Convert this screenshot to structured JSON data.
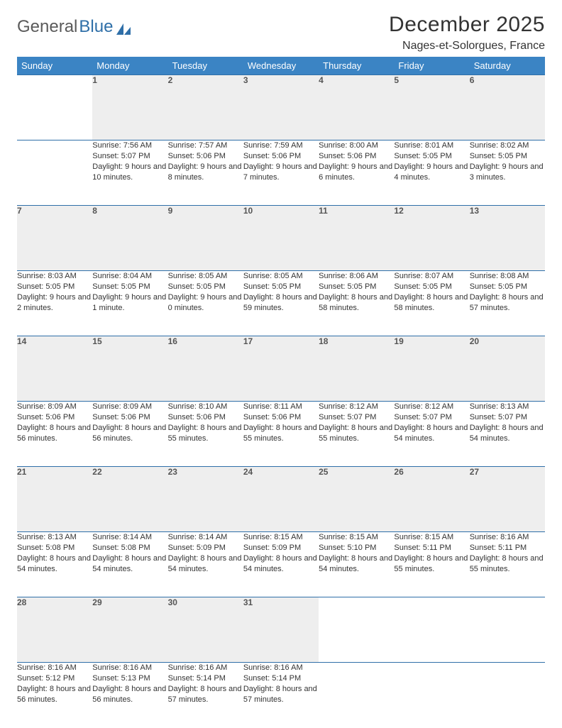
{
  "logo": {
    "part1": "General",
    "part2": "Blue"
  },
  "title": "December 2025",
  "location": "Nages-et-Solorgues, France",
  "colors": {
    "header_bg": "#3b84c4",
    "header_text": "#ffffff",
    "border": "#2f6fa8",
    "daynum_bg": "#eeeeee",
    "daynum_text": "#555555",
    "body_text": "#333333",
    "logo_gray": "#5a5a5a",
    "logo_blue": "#2f6fa8",
    "page_bg": "#ffffff"
  },
  "weekdays": [
    "Sunday",
    "Monday",
    "Tuesday",
    "Wednesday",
    "Thursday",
    "Friday",
    "Saturday"
  ],
  "weeks": [
    [
      null,
      {
        "n": "1",
        "sr": "7:56 AM",
        "ss": "5:07 PM",
        "dl": "9 hours and 10 minutes."
      },
      {
        "n": "2",
        "sr": "7:57 AM",
        "ss": "5:06 PM",
        "dl": "9 hours and 8 minutes."
      },
      {
        "n": "3",
        "sr": "7:59 AM",
        "ss": "5:06 PM",
        "dl": "9 hours and 7 minutes."
      },
      {
        "n": "4",
        "sr": "8:00 AM",
        "ss": "5:06 PM",
        "dl": "9 hours and 6 minutes."
      },
      {
        "n": "5",
        "sr": "8:01 AM",
        "ss": "5:05 PM",
        "dl": "9 hours and 4 minutes."
      },
      {
        "n": "6",
        "sr": "8:02 AM",
        "ss": "5:05 PM",
        "dl": "9 hours and 3 minutes."
      }
    ],
    [
      {
        "n": "7",
        "sr": "8:03 AM",
        "ss": "5:05 PM",
        "dl": "9 hours and 2 minutes."
      },
      {
        "n": "8",
        "sr": "8:04 AM",
        "ss": "5:05 PM",
        "dl": "9 hours and 1 minute."
      },
      {
        "n": "9",
        "sr": "8:05 AM",
        "ss": "5:05 PM",
        "dl": "9 hours and 0 minutes."
      },
      {
        "n": "10",
        "sr": "8:05 AM",
        "ss": "5:05 PM",
        "dl": "8 hours and 59 minutes."
      },
      {
        "n": "11",
        "sr": "8:06 AM",
        "ss": "5:05 PM",
        "dl": "8 hours and 58 minutes."
      },
      {
        "n": "12",
        "sr": "8:07 AM",
        "ss": "5:05 PM",
        "dl": "8 hours and 58 minutes."
      },
      {
        "n": "13",
        "sr": "8:08 AM",
        "ss": "5:05 PM",
        "dl": "8 hours and 57 minutes."
      }
    ],
    [
      {
        "n": "14",
        "sr": "8:09 AM",
        "ss": "5:06 PM",
        "dl": "8 hours and 56 minutes."
      },
      {
        "n": "15",
        "sr": "8:09 AM",
        "ss": "5:06 PM",
        "dl": "8 hours and 56 minutes."
      },
      {
        "n": "16",
        "sr": "8:10 AM",
        "ss": "5:06 PM",
        "dl": "8 hours and 55 minutes."
      },
      {
        "n": "17",
        "sr": "8:11 AM",
        "ss": "5:06 PM",
        "dl": "8 hours and 55 minutes."
      },
      {
        "n": "18",
        "sr": "8:12 AM",
        "ss": "5:07 PM",
        "dl": "8 hours and 55 minutes."
      },
      {
        "n": "19",
        "sr": "8:12 AM",
        "ss": "5:07 PM",
        "dl": "8 hours and 54 minutes."
      },
      {
        "n": "20",
        "sr": "8:13 AM",
        "ss": "5:07 PM",
        "dl": "8 hours and 54 minutes."
      }
    ],
    [
      {
        "n": "21",
        "sr": "8:13 AM",
        "ss": "5:08 PM",
        "dl": "8 hours and 54 minutes."
      },
      {
        "n": "22",
        "sr": "8:14 AM",
        "ss": "5:08 PM",
        "dl": "8 hours and 54 minutes."
      },
      {
        "n": "23",
        "sr": "8:14 AM",
        "ss": "5:09 PM",
        "dl": "8 hours and 54 minutes."
      },
      {
        "n": "24",
        "sr": "8:15 AM",
        "ss": "5:09 PM",
        "dl": "8 hours and 54 minutes."
      },
      {
        "n": "25",
        "sr": "8:15 AM",
        "ss": "5:10 PM",
        "dl": "8 hours and 54 minutes."
      },
      {
        "n": "26",
        "sr": "8:15 AM",
        "ss": "5:11 PM",
        "dl": "8 hours and 55 minutes."
      },
      {
        "n": "27",
        "sr": "8:16 AM",
        "ss": "5:11 PM",
        "dl": "8 hours and 55 minutes."
      }
    ],
    [
      {
        "n": "28",
        "sr": "8:16 AM",
        "ss": "5:12 PM",
        "dl": "8 hours and 56 minutes."
      },
      {
        "n": "29",
        "sr": "8:16 AM",
        "ss": "5:13 PM",
        "dl": "8 hours and 56 minutes."
      },
      {
        "n": "30",
        "sr": "8:16 AM",
        "ss": "5:14 PM",
        "dl": "8 hours and 57 minutes."
      },
      {
        "n": "31",
        "sr": "8:16 AM",
        "ss": "5:14 PM",
        "dl": "8 hours and 57 minutes."
      },
      null,
      null,
      null
    ]
  ],
  "labels": {
    "sunrise": "Sunrise: ",
    "sunset": "Sunset: ",
    "daylight": "Daylight: "
  }
}
